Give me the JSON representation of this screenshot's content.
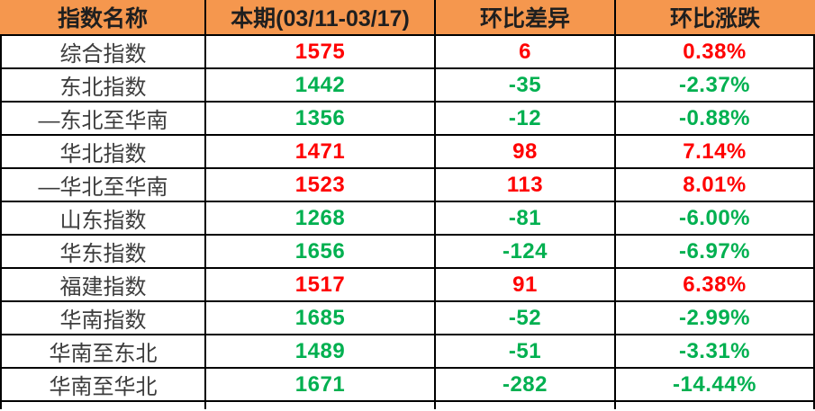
{
  "chart_data": {
    "type": "table",
    "title": "",
    "columns": [
      "指数名称",
      "本期(03/11-03/17)",
      "环比差异",
      "环比涨跌"
    ],
    "rows": [
      {
        "name": "综合指数",
        "value": "1575",
        "diff": "6",
        "pct": "0.38%",
        "trend": "up"
      },
      {
        "name": "东北指数",
        "value": "1442",
        "diff": "-35",
        "pct": "-2.37%",
        "trend": "down"
      },
      {
        "name": "—东北至华南",
        "value": "1356",
        "diff": "-12",
        "pct": "-0.88%",
        "trend": "down"
      },
      {
        "name": "华北指数",
        "value": "1471",
        "diff": "98",
        "pct": "7.14%",
        "trend": "up"
      },
      {
        "name": "—华北至华南",
        "value": "1523",
        "diff": "113",
        "pct": "8.01%",
        "trend": "up"
      },
      {
        "name": "山东指数",
        "value": "1268",
        "diff": "-81",
        "pct": "-6.00%",
        "trend": "down"
      },
      {
        "name": "华东指数",
        "value": "1656",
        "diff": "-124",
        "pct": "-6.97%",
        "trend": "down"
      },
      {
        "name": "福建指数",
        "value": "1517",
        "diff": "91",
        "pct": "6.38%",
        "trend": "up"
      },
      {
        "name": "华南指数",
        "value": "1685",
        "diff": "-52",
        "pct": "-2.99%",
        "trend": "down"
      },
      {
        "name": "华南至东北",
        "value": "1489",
        "diff": "-51",
        "pct": "-3.31%",
        "trend": "down"
      },
      {
        "name": "华南至华北",
        "value": "1671",
        "diff": "-282",
        "pct": "-14.44%",
        "trend": "down"
      }
    ]
  },
  "colors": {
    "up": "#FF0000",
    "down": "#00B050",
    "header_bg": "#F5974E",
    "header_text": "#1F1F1F",
    "name_text": "#3D3D3D",
    "grid": "#000000"
  }
}
